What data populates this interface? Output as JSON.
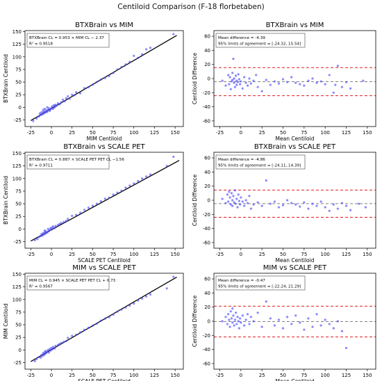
{
  "figure": {
    "suptitle": "Centiloid Comparison (F-18 florbetaben)"
  },
  "colors": {
    "points": "#4a4aff",
    "regression_line": "#000000",
    "mean_line": "#808080",
    "limit_lines": "#e41a1c",
    "frame": "#000000"
  },
  "chart_data": [
    {
      "type": "scatter",
      "title": "BTXBrain vs MIM",
      "xlabel": "MIM Centiloid",
      "ylabel": "BTXBrain Centiloid",
      "xlim": [
        -32,
        160
      ],
      "ylim": [
        -38,
        152
      ],
      "xticks": [
        -25,
        0,
        25,
        50,
        75,
        100,
        125,
        150
      ],
      "yticks": [
        -25,
        0,
        25,
        50,
        75,
        100,
        125,
        150
      ],
      "annotation": [
        "BTXBrain CL = 0.953 × MIM CL − 2.37",
        "R² = 0.9518"
      ],
      "fit": {
        "slope": 0.953,
        "intercept": -2.37,
        "x_range": [
          -25,
          152
        ]
      },
      "x": [
        -22,
        -18,
        -15,
        -14,
        -13,
        -12,
        -11,
        -10,
        -10,
        -9,
        -8,
        -8,
        -7,
        -6,
        -5,
        -5,
        -4,
        -3,
        -2,
        -1,
        0,
        1,
        2,
        3,
        4,
        5,
        6,
        8,
        10,
        12,
        14,
        16,
        18,
        20,
        22,
        25,
        28,
        30,
        35,
        40,
        45,
        50,
        55,
        60,
        65,
        70,
        75,
        80,
        85,
        90,
        95,
        100,
        105,
        110,
        115,
        120,
        148
      ],
      "y": [
        -27,
        -22,
        -18,
        -12,
        -15,
        -10,
        -14,
        -9,
        -5,
        -12,
        -8,
        -3,
        -10,
        -6,
        -9,
        0,
        -5,
        -2,
        -7,
        -4,
        -1,
        2,
        -3,
        4,
        0,
        5,
        3,
        8,
        6,
        10,
        15,
        12,
        18,
        22,
        17,
        25,
        24,
        30,
        28,
        38,
        40,
        45,
        50,
        55,
        58,
        62,
        68,
        75,
        80,
        85,
        90,
        102,
        98,
        105,
        115,
        118,
        145
      ],
      "labels": {
        "xticks": [],
        "yticks": []
      }
    },
    {
      "type": "scatter",
      "title": "BTXBrain vs MIM",
      "xlabel": "Mean Centiloid",
      "ylabel": "Centiloid Difference",
      "xlim": [
        -32,
        160
      ],
      "ylim": [
        -68,
        68
      ],
      "xticks": [
        -25,
        0,
        25,
        50,
        75,
        100,
        125,
        150
      ],
      "yticks": [
        -60,
        -40,
        -20,
        0,
        20,
        40,
        60
      ],
      "annotation": [
        "Mean difference = -4.39",
        "95% limits of agreement = [-24.32, 15.54]"
      ],
      "mean_difference": -4.39,
      "limits_of_agreement": [
        -24.32,
        15.54
      ],
      "x": [
        -22,
        -18,
        -15,
        -14,
        -13,
        -12,
        -11,
        -10,
        -10,
        -9,
        -8,
        -8,
        -7,
        -6,
        -5,
        -5,
        -4,
        -3,
        -2,
        -1,
        0,
        2,
        4,
        6,
        8,
        10,
        12,
        15,
        18,
        20,
        25,
        30,
        35,
        40,
        45,
        50,
        55,
        60,
        65,
        70,
        75,
        80,
        85,
        90,
        95,
        100,
        105,
        110,
        112,
        115,
        120,
        125,
        130,
        145
      ],
      "y": [
        -3,
        -10,
        5,
        -8,
        2,
        -15,
        -4,
        8,
        -2,
        28,
        -6,
        0,
        -12,
        4,
        -9,
        -3,
        -5,
        6,
        -1,
        -8,
        -4,
        -14,
        2,
        -6,
        -10,
        0,
        -7,
        -3,
        5,
        -12,
        -18,
        -2,
        -9,
        -4,
        -7,
        -1,
        -5,
        2,
        -6,
        -8,
        -10,
        -3,
        0,
        -6,
        -4,
        -8,
        5,
        -20,
        -9,
        18,
        -12,
        -5,
        -14,
        -3
      ]
    },
    {
      "type": "scatter",
      "title": "BTXBrain vs SCALE PET",
      "xlabel": "SCALE PET Centiloid",
      "ylabel": "BTXBrain Centiloid",
      "xlim": [
        -32,
        160
      ],
      "ylim": [
        -38,
        152
      ],
      "xticks": [
        -25,
        0,
        25,
        50,
        75,
        100,
        125,
        150
      ],
      "yticks": [
        -25,
        0,
        25,
        50,
        75,
        100,
        125,
        150
      ],
      "annotation": [
        "BTXBrain CL = 0.887 × SCALE PET PET CL −1.56",
        "R² = 0.9711"
      ],
      "fit": {
        "slope": 0.887,
        "intercept": -1.56,
        "x_range": [
          -25,
          155
        ]
      },
      "x": [
        -20,
        -17,
        -15,
        -13,
        -12,
        -11,
        -10,
        -9,
        -8,
        -8,
        -7,
        -6,
        -5,
        -4,
        -3,
        -2,
        -1,
        0,
        1,
        2,
        4,
        5,
        8,
        10,
        12,
        15,
        18,
        20,
        25,
        30,
        35,
        40,
        45,
        50,
        55,
        60,
        65,
        70,
        75,
        80,
        85,
        90,
        95,
        100,
        105,
        110,
        115,
        120,
        140,
        148
      ],
      "y": [
        -22,
        -20,
        -16,
        -14,
        -10,
        -13,
        -8,
        -11,
        -6,
        -3,
        -9,
        -5,
        -7,
        0,
        -4,
        -2,
        2,
        -1,
        3,
        5,
        2,
        6,
        8,
        10,
        12,
        14,
        16,
        20,
        26,
        28,
        32,
        38,
        42,
        46,
        50,
        55,
        60,
        62,
        68,
        72,
        76,
        82,
        86,
        90,
        95,
        100,
        104,
        108,
        125,
        143
      ]
    },
    {
      "type": "scatter",
      "title": "BTXBrain vs SCALE PET",
      "xlabel": "Mean Centiloid",
      "ylabel": "Centiloid Difference",
      "xlim": [
        -32,
        160
      ],
      "ylim": [
        -68,
        68
      ],
      "xticks": [
        -25,
        0,
        25,
        50,
        75,
        100,
        125,
        150
      ],
      "yticks": [
        -60,
        -40,
        -20,
        0,
        20,
        40,
        60
      ],
      "annotation": [
        "Mean difference = -4.86",
        "95% limits of agreement = [-24.11, 14.39]"
      ],
      "mean_difference": -4.86,
      "limits_of_agreement": [
        -24.11,
        14.39
      ],
      "x": [
        -22,
        -18,
        -16,
        -15,
        -14,
        -13,
        -12,
        -11,
        -10,
        -10,
        -9,
        -8,
        -7,
        -6,
        -5,
        -4,
        -3,
        -2,
        -1,
        0,
        2,
        4,
        6,
        8,
        10,
        12,
        15,
        20,
        25,
        30,
        35,
        40,
        45,
        50,
        55,
        60,
        65,
        70,
        75,
        80,
        85,
        90,
        95,
        100,
        105,
        110,
        115,
        120,
        125,
        130,
        140,
        148
      ],
      "y": [
        2,
        -4,
        8,
        -2,
        12,
        4,
        -6,
        10,
        0,
        -8,
        6,
        -3,
        14,
        -5,
        2,
        -10,
        8,
        -1,
        -6,
        4,
        -2,
        -8,
        0,
        -4,
        6,
        -12,
        -6,
        -3,
        -8,
        28,
        -5,
        -2,
        -10,
        -7,
        0,
        -4,
        -6,
        -9,
        -3,
        -12,
        -5,
        -8,
        -2,
        -10,
        -15,
        -6,
        -12,
        -4,
        -8,
        -14,
        -5,
        -10
      ]
    },
    {
      "type": "scatter",
      "title": "MIM vs SCALE PET",
      "xlabel": "SCALE PET Centiloid",
      "ylabel": "MIM Centiloid",
      "xlim": [
        -32,
        160
      ],
      "ylim": [
        -38,
        152
      ],
      "xticks": [
        -25,
        0,
        25,
        50,
        75,
        100,
        125,
        150
      ],
      "yticks": [
        -25,
        0,
        25,
        50,
        75,
        100,
        125,
        150
      ],
      "annotation": [
        "MIM CL = 0.945 × SCALE PET PET CL + 0.73",
        "R² = 0.9567"
      ],
      "fit": {
        "slope": 0.945,
        "intercept": 0.73,
        "x_range": [
          -25,
          152
        ]
      },
      "x": [
        -20,
        -18,
        -15,
        -13,
        -12,
        -11,
        -10,
        -9,
        -8,
        -8,
        -7,
        -6,
        -5,
        -4,
        -3,
        -2,
        -1,
        0,
        1,
        2,
        4,
        5,
        8,
        10,
        12,
        15,
        18,
        20,
        25,
        30,
        35,
        40,
        45,
        50,
        55,
        60,
        65,
        70,
        75,
        80,
        85,
        90,
        95,
        100,
        105,
        110,
        115,
        120,
        140,
        148
      ],
      "y": [
        -22,
        -18,
        -14,
        -15,
        -10,
        -12,
        -6,
        -10,
        -4,
        -8,
        -2,
        -6,
        -3,
        0,
        -5,
        2,
        -1,
        4,
        1,
        6,
        3,
        8,
        10,
        12,
        14,
        16,
        18,
        24,
        28,
        30,
        35,
        40,
        44,
        48,
        52,
        58,
        62,
        65,
        70,
        76,
        80,
        84,
        88,
        92,
        98,
        102,
        106,
        110,
        122,
        145
      ]
    },
    {
      "type": "scatter",
      "title": "MIM vs SCALE PET",
      "xlabel": "Mean Centiloid",
      "ylabel": "Centiloid Difference",
      "xlim": [
        -32,
        160
      ],
      "ylim": [
        -68,
        68
      ],
      "xticks": [
        -25,
        0,
        25,
        50,
        75,
        100,
        125,
        150
      ],
      "yticks": [
        -60,
        -40,
        -20,
        0,
        20,
        40,
        60
      ],
      "annotation": [
        "Mean difference = -0.47",
        "95% limits of agreement = [-22.24, 21.29]"
      ],
      "mean_difference": -0.47,
      "limits_of_agreement": [
        -22.24,
        21.29
      ],
      "x": [
        -22,
        -18,
        -16,
        -15,
        -14,
        -13,
        -12,
        -11,
        -10,
        -10,
        -9,
        -8,
        -7,
        -6,
        -5,
        -4,
        -3,
        -2,
        -1,
        0,
        2,
        4,
        6,
        8,
        10,
        12,
        15,
        20,
        25,
        30,
        35,
        40,
        45,
        50,
        55,
        60,
        65,
        70,
        75,
        80,
        85,
        90,
        95,
        100,
        105,
        110,
        115,
        120,
        125
      ],
      "y": [
        0,
        6,
        -4,
        10,
        2,
        -8,
        14,
        4,
        -2,
        18,
        8,
        -6,
        2,
        12,
        -4,
        6,
        0,
        -10,
        4,
        -2,
        8,
        -6,
        2,
        10,
        -4,
        6,
        0,
        12,
        -8,
        28,
        4,
        -6,
        2,
        -10,
        6,
        -4,
        8,
        -2,
        -12,
        4,
        -8,
        10,
        -6,
        2,
        -4,
        -10,
        0,
        -14,
        -38
      ]
    }
  ]
}
